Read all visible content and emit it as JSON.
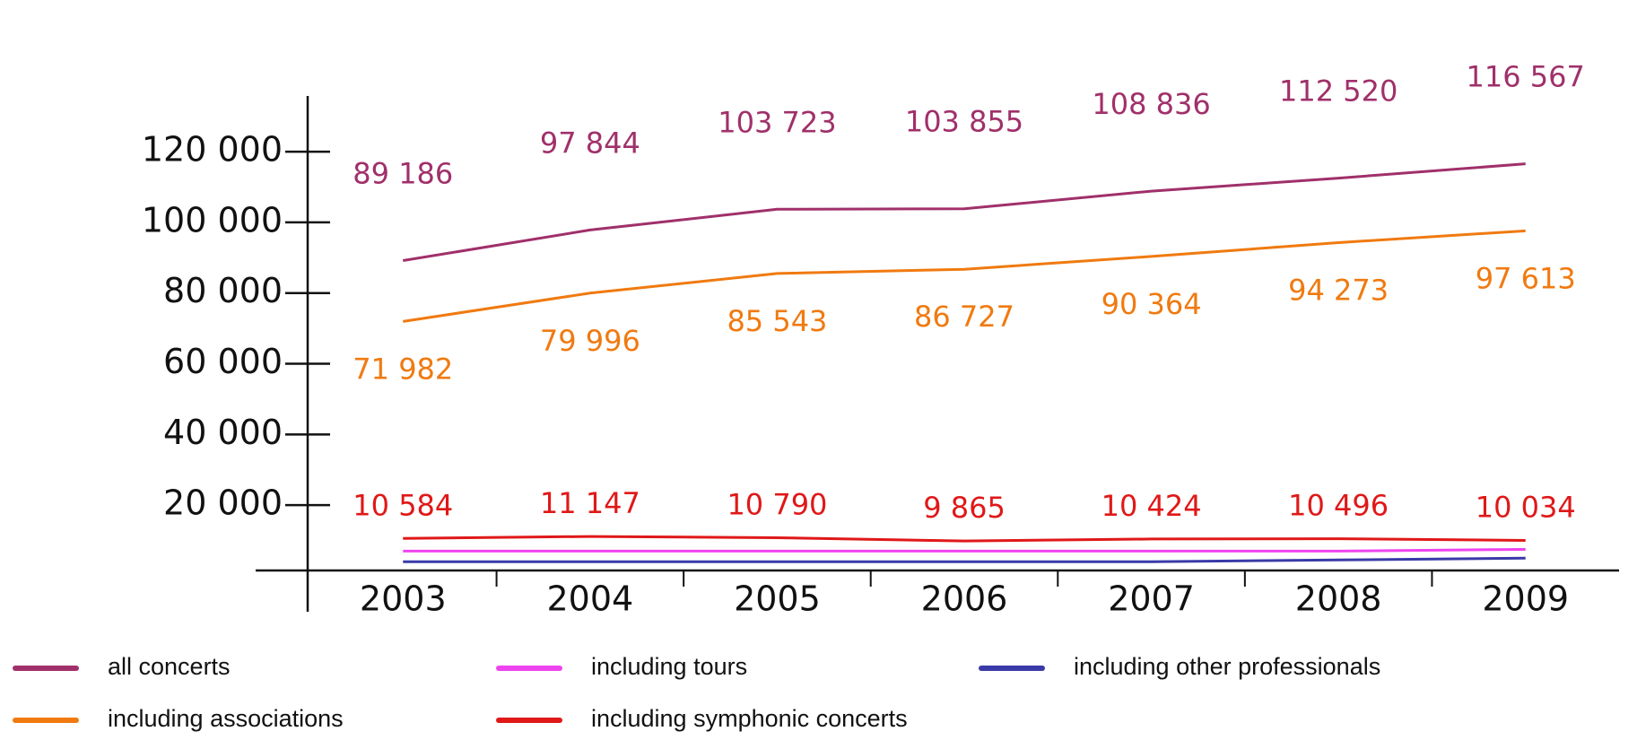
{
  "chart_data": {
    "type": "line",
    "categories": [
      "2003",
      "2004",
      "2005",
      "2006",
      "2007",
      "2008",
      "2009"
    ],
    "ylim": [
      0,
      135000
    ],
    "yticks": [
      {
        "value": 20000,
        "label": "20 000"
      },
      {
        "value": 40000,
        "label": "40 000"
      },
      {
        "value": 60000,
        "label": "60 000"
      },
      {
        "value": 80000,
        "label": "80 000"
      },
      {
        "value": 100000,
        "label": "100 000"
      },
      {
        "value": 120000,
        "label": "120 000"
      }
    ],
    "series": [
      {
        "name": "all concerts",
        "color": "#a0306a",
        "values": [
          89186,
          97844,
          103723,
          103855,
          108836,
          112520,
          116567
        ],
        "value_labels": [
          "89 186",
          "97 844",
          "103 723",
          "103 855",
          "108 836",
          "112 520",
          "116 567"
        ]
      },
      {
        "name": "including tours",
        "color": "#ee44ee",
        "values": [
          7000,
          7000,
          7000,
          7000,
          7000,
          7000,
          7500
        ]
      },
      {
        "name": "including other professionals",
        "color": "#3a3aa8",
        "values": [
          4000,
          4000,
          4000,
          4000,
          4000,
          4500,
          5000
        ]
      },
      {
        "name": "including associations",
        "color": "#f07a10",
        "values": [
          71982,
          79996,
          85543,
          86727,
          90364,
          94273,
          97613
        ],
        "value_labels": [
          "71 982",
          "79 996",
          "85 543",
          "86 727",
          "90 364",
          "94 273",
          "97 613"
        ]
      },
      {
        "name": "including symphonic concerts",
        "color": "#e01818",
        "values": [
          10584,
          11147,
          10790,
          9865,
          10424,
          10496,
          10034
        ],
        "value_labels": [
          "10 584",
          "11 147",
          "10 790",
          "9 865",
          "10 424",
          "10 496",
          "10 034"
        ]
      }
    ]
  }
}
